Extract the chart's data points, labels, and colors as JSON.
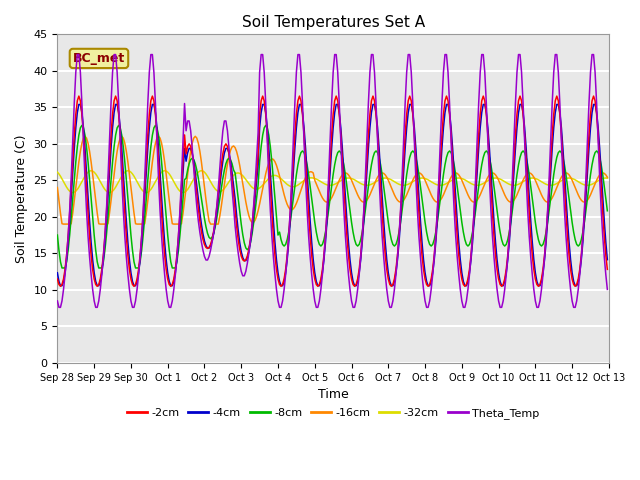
{
  "title": "Soil Temperatures Set A",
  "xlabel": "Time",
  "ylabel": "Soil Temperature (C)",
  "ylim": [
    0,
    45
  ],
  "yticks": [
    0,
    5,
    10,
    15,
    20,
    25,
    30,
    35,
    40,
    45
  ],
  "annotation": "BC_met",
  "colors": {
    "-2cm": "#ff0000",
    "-4cm": "#0000cc",
    "-8cm": "#00bb00",
    "-16cm": "#ff8800",
    "-32cm": "#dddd00",
    "Theta_Temp": "#9900cc"
  },
  "x_labels": [
    "Sep 28",
    "Sep 29",
    "Sep 30",
    "Oct 1",
    "Oct 2",
    "Oct 3",
    "Oct 4",
    "Oct 5",
    "Oct 6",
    "Oct 7",
    "Oct 8",
    "Oct 9",
    "Oct 10",
    "Oct 11",
    "Oct 12",
    "Oct 13"
  ],
  "n_days": 15,
  "hours_per_day": 24
}
